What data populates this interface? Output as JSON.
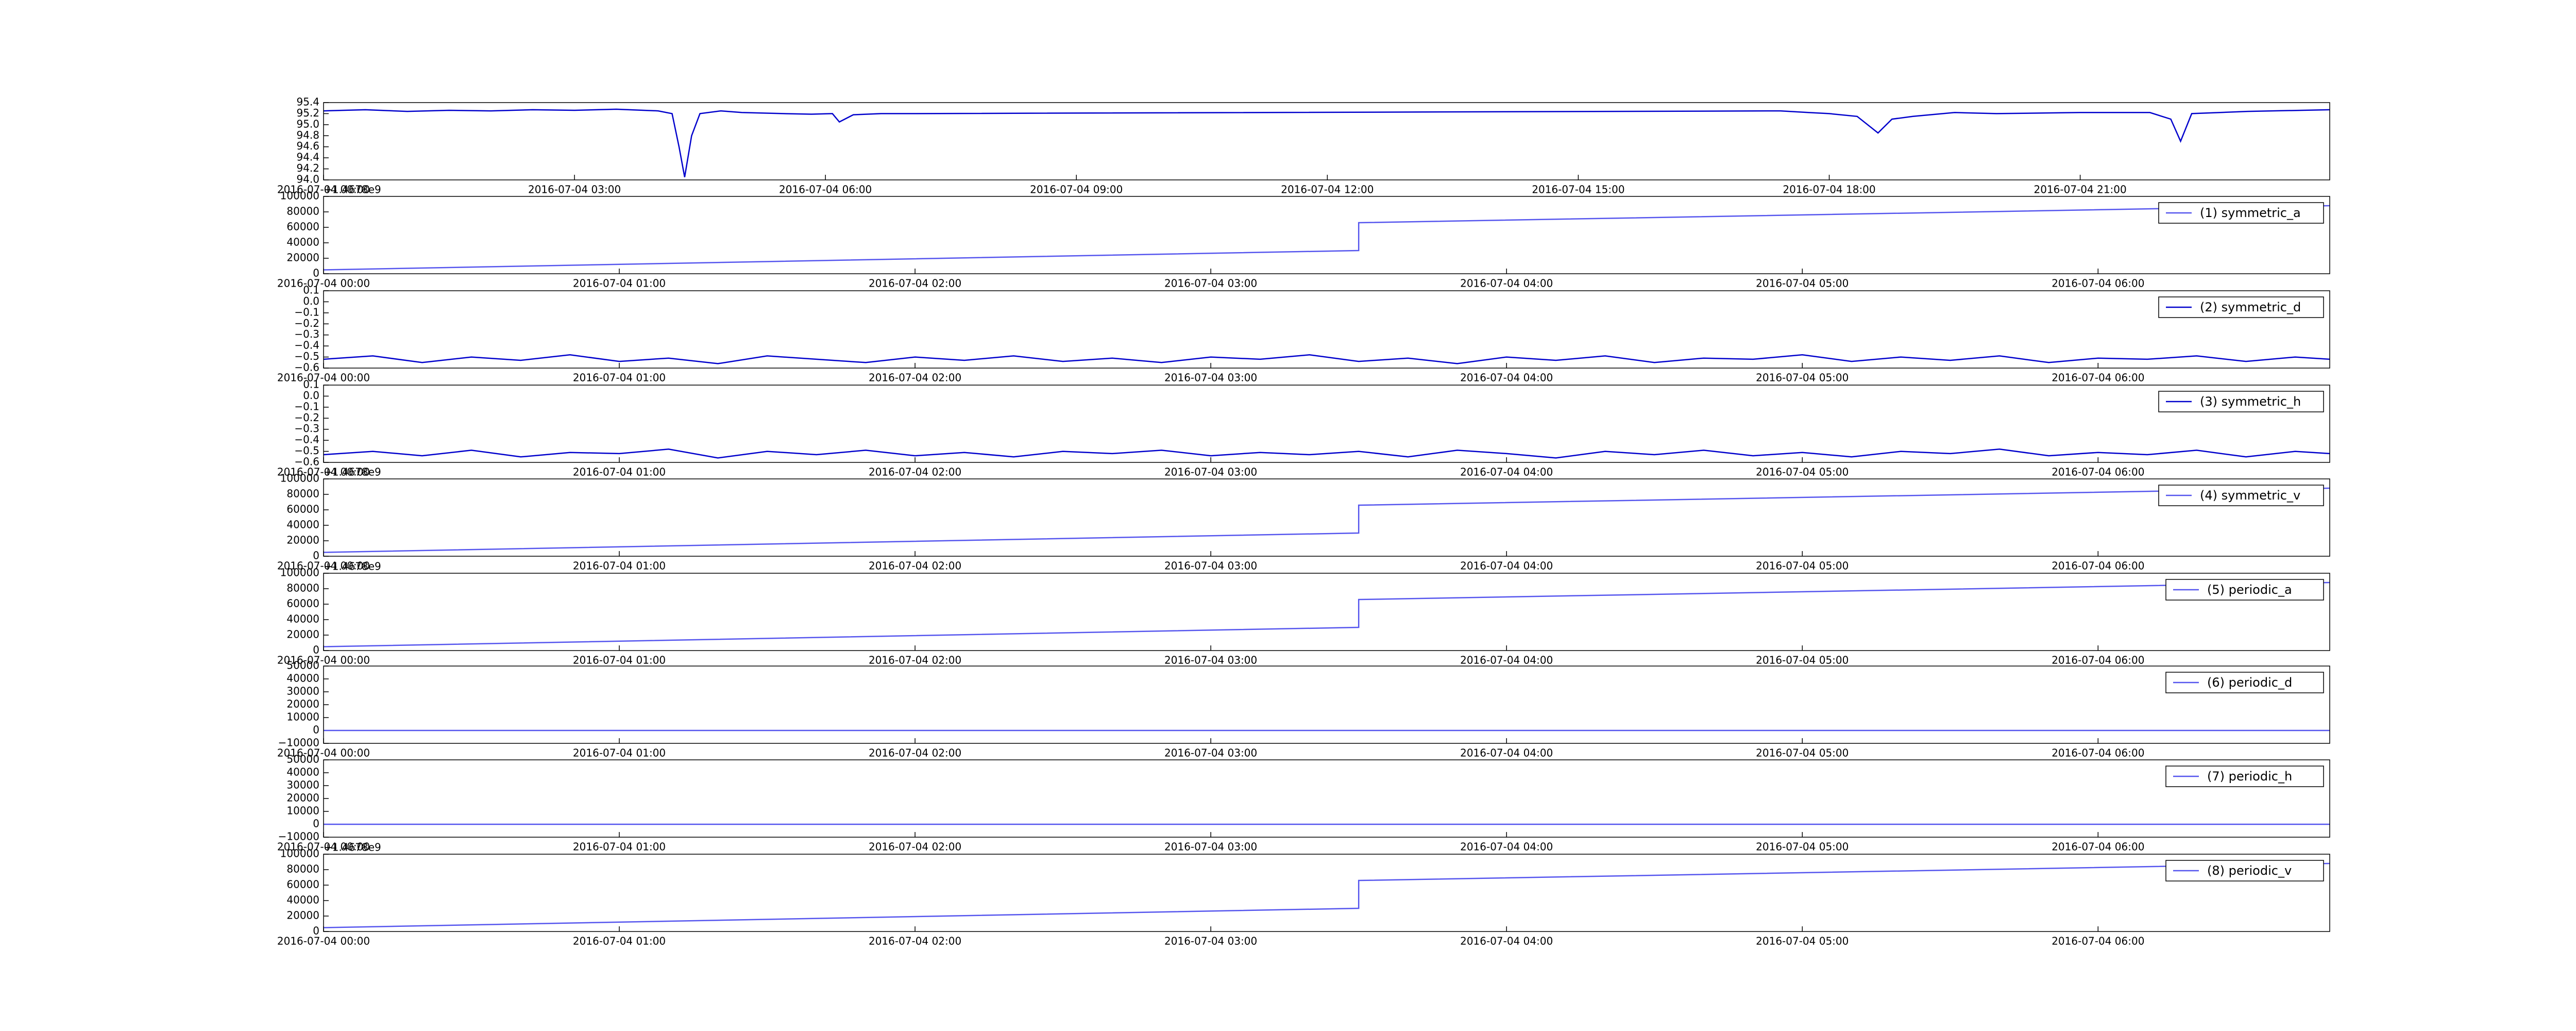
{
  "chart_data": [
    {
      "type": "line",
      "xlim": [
        "2016-07-04 00:00",
        "2016-07-04 23:59"
      ],
      "xticks": [
        "2016-07-04 00:00",
        "2016-07-04 03:00",
        "2016-07-04 06:00",
        "2016-07-04 09:00",
        "2016-07-04 12:00",
        "2016-07-04 15:00",
        "2016-07-04 18:00",
        "2016-07-04 21:00"
      ],
      "ylim": [
        94.0,
        95.4
      ],
      "yticks": [
        {
          "value": 94,
          "label": "94.0"
        },
        94.2,
        94.4,
        94.6,
        94.8,
        {
          "value": 95,
          "label": "95.0"
        },
        95.2,
        95.4
      ],
      "series": [
        {
          "color": "#0000cc",
          "x": [
            "2016-07-04 00:00",
            "2016-07-04 00:30",
            "2016-07-04 01:00",
            "2016-07-04 01:30",
            "2016-07-04 02:00",
            "2016-07-04 02:30",
            "2016-07-04 03:00",
            "2016-07-04 03:30",
            "2016-07-04 04:00",
            "2016-07-04 04:10",
            "2016-07-04 04:15",
            "2016-07-04 04:19",
            "2016-07-04 04:24",
            "2016-07-04 04:30",
            "2016-07-04 04:45",
            "2016-07-04 05:00",
            "2016-07-04 05:30",
            "2016-07-04 05:50",
            "2016-07-04 06:05",
            "2016-07-04 06:10",
            "2016-07-04 06:20",
            "2016-07-04 06:40",
            "2016-07-04 07:00",
            "2016-07-04 17:25",
            "2016-07-04 17:45",
            "2016-07-04 18:00",
            "2016-07-04 18:20",
            "2016-07-04 18:35",
            "2016-07-04 18:45",
            "2016-07-04 19:00",
            "2016-07-04 19:30",
            "2016-07-04 20:00",
            "2016-07-04 21:00",
            "2016-07-04 21:50",
            "2016-07-04 22:05",
            "2016-07-04 22:12",
            "2016-07-04 22:20",
            "2016-07-04 23:00",
            "2016-07-04 23:59"
          ],
          "values": [
            95.25,
            95.27,
            95.24,
            95.26,
            95.25,
            95.27,
            95.26,
            95.28,
            95.25,
            95.2,
            94.6,
            94.05,
            94.8,
            95.2,
            95.25,
            95.22,
            95.2,
            95.19,
            95.2,
            95.05,
            95.18,
            95.2,
            95.2,
            95.25,
            95.22,
            95.2,
            95.15,
            94.85,
            95.1,
            95.15,
            95.22,
            95.2,
            95.22,
            95.22,
            95.1,
            94.7,
            95.2,
            95.24,
            95.27
          ]
        }
      ]
    },
    {
      "type": "line",
      "offset_text": "+1.4678e9",
      "legend": "upper right",
      "xlim": [
        "2016-07-04 00:00",
        "2016-07-04 06:47"
      ],
      "xticks": [
        "2016-07-04 00:00",
        "2016-07-04 01:00",
        "2016-07-04 02:00",
        "2016-07-04 03:00",
        "2016-07-04 04:00",
        "2016-07-04 05:00",
        "2016-07-04 06:00"
      ],
      "ylim": [
        0,
        100000
      ],
      "yticks": [
        0,
        20000,
        40000,
        60000,
        80000,
        100000
      ],
      "series": [
        {
          "name": "(1) symmetric_a",
          "color": "#5555ee",
          "x": [
            "2016-07-04 00:00",
            "2016-07-04 03:30",
            "2016-07-04 03:30",
            "2016-07-04 06:47"
          ],
          "values": [
            5000,
            30000,
            66000,
            88000
          ]
        }
      ]
    },
    {
      "type": "line",
      "legend": "upper right",
      "xlim": [
        "2016-07-04 00:00",
        "2016-07-04 06:47"
      ],
      "xticks": [
        "2016-07-04 00:00",
        "2016-07-04 01:00",
        "2016-07-04 02:00",
        "2016-07-04 03:00",
        "2016-07-04 04:00",
        "2016-07-04 05:00",
        "2016-07-04 06:00"
      ],
      "ylim": [
        -0.6,
        0.1
      ],
      "yticks": [
        {
          "value": -0.6,
          "label": "−0.6"
        },
        {
          "value": -0.5,
          "label": "−0.5"
        },
        {
          "value": -0.4,
          "label": "−0.4"
        },
        {
          "value": -0.3,
          "label": "−0.3"
        },
        {
          "value": -0.2,
          "label": "−0.2"
        },
        {
          "value": -0.1,
          "label": "−0.1"
        },
        {
          "value": 0,
          "label": "0.0"
        },
        0.1
      ],
      "series": [
        {
          "name": "(2) symmetric_d",
          "color": "#0000cc",
          "x": [
            "2016-07-04 00:00",
            "2016-07-04 00:10",
            "2016-07-04 00:20",
            "2016-07-04 00:30",
            "2016-07-04 00:40",
            "2016-07-04 00:50",
            "2016-07-04 01:00",
            "2016-07-04 01:10",
            "2016-07-04 01:20",
            "2016-07-04 01:30",
            "2016-07-04 01:40",
            "2016-07-04 01:50",
            "2016-07-04 02:00",
            "2016-07-04 02:10",
            "2016-07-04 02:20",
            "2016-07-04 02:30",
            "2016-07-04 02:40",
            "2016-07-04 02:50",
            "2016-07-04 03:00",
            "2016-07-04 03:10",
            "2016-07-04 03:20",
            "2016-07-04 03:30",
            "2016-07-04 03:40",
            "2016-07-04 03:50",
            "2016-07-04 04:00",
            "2016-07-04 04:10",
            "2016-07-04 04:20",
            "2016-07-04 04:30",
            "2016-07-04 04:40",
            "2016-07-04 04:50",
            "2016-07-04 05:00",
            "2016-07-04 05:10",
            "2016-07-04 05:20",
            "2016-07-04 05:30",
            "2016-07-04 05:40",
            "2016-07-04 05:50",
            "2016-07-04 06:00",
            "2016-07-04 06:10",
            "2016-07-04 06:20",
            "2016-07-04 06:30",
            "2016-07-04 06:40",
            "2016-07-04 06:47"
          ],
          "values": [
            -0.52,
            -0.49,
            -0.55,
            -0.5,
            -0.53,
            -0.48,
            -0.54,
            -0.51,
            -0.56,
            -0.49,
            -0.52,
            -0.55,
            -0.5,
            -0.53,
            -0.49,
            -0.54,
            -0.51,
            -0.55,
            -0.5,
            -0.52,
            -0.48,
            -0.54,
            -0.51,
            -0.56,
            -0.5,
            -0.53,
            -0.49,
            -0.55,
            -0.51,
            -0.52,
            -0.48,
            -0.54,
            -0.5,
            -0.53,
            -0.49,
            -0.55,
            -0.51,
            -0.52,
            -0.49,
            -0.54,
            -0.5,
            -0.52
          ]
        }
      ]
    },
    {
      "type": "line",
      "legend": "upper right",
      "xlim": [
        "2016-07-04 00:00",
        "2016-07-04 06:47"
      ],
      "xticks": [
        "2016-07-04 00:00",
        "2016-07-04 01:00",
        "2016-07-04 02:00",
        "2016-07-04 03:00",
        "2016-07-04 04:00",
        "2016-07-04 05:00",
        "2016-07-04 06:00"
      ],
      "ylim": [
        -0.6,
        0.1
      ],
      "yticks": [
        {
          "value": -0.6,
          "label": "−0.6"
        },
        {
          "value": -0.5,
          "label": "−0.5"
        },
        {
          "value": -0.4,
          "label": "−0.4"
        },
        {
          "value": -0.3,
          "label": "−0.3"
        },
        {
          "value": -0.2,
          "label": "−0.2"
        },
        {
          "value": -0.1,
          "label": "−0.1"
        },
        {
          "value": 0,
          "label": "0.0"
        },
        0.1
      ],
      "series": [
        {
          "name": "(3) symmetric_h",
          "color": "#0000cc",
          "x": [
            "2016-07-04 00:00",
            "2016-07-04 00:10",
            "2016-07-04 00:20",
            "2016-07-04 00:30",
            "2016-07-04 00:40",
            "2016-07-04 00:50",
            "2016-07-04 01:00",
            "2016-07-04 01:10",
            "2016-07-04 01:20",
            "2016-07-04 01:30",
            "2016-07-04 01:40",
            "2016-07-04 01:50",
            "2016-07-04 02:00",
            "2016-07-04 02:10",
            "2016-07-04 02:20",
            "2016-07-04 02:30",
            "2016-07-04 02:40",
            "2016-07-04 02:50",
            "2016-07-04 03:00",
            "2016-07-04 03:10",
            "2016-07-04 03:20",
            "2016-07-04 03:30",
            "2016-07-04 03:40",
            "2016-07-04 03:50",
            "2016-07-04 04:00",
            "2016-07-04 04:10",
            "2016-07-04 04:20",
            "2016-07-04 04:30",
            "2016-07-04 04:40",
            "2016-07-04 04:50",
            "2016-07-04 05:00",
            "2016-07-04 05:10",
            "2016-07-04 05:20",
            "2016-07-04 05:30",
            "2016-07-04 05:40",
            "2016-07-04 05:50",
            "2016-07-04 06:00",
            "2016-07-04 06:10",
            "2016-07-04 06:20",
            "2016-07-04 06:30",
            "2016-07-04 06:40",
            "2016-07-04 06:47"
          ],
          "values": [
            -0.53,
            -0.5,
            -0.54,
            -0.49,
            -0.55,
            -0.51,
            -0.52,
            -0.48,
            -0.56,
            -0.5,
            -0.53,
            -0.49,
            -0.54,
            -0.51,
            -0.55,
            -0.5,
            -0.52,
            -0.49,
            -0.54,
            -0.51,
            -0.53,
            -0.5,
            -0.55,
            -0.49,
            -0.52,
            -0.56,
            -0.5,
            -0.53,
            -0.49,
            -0.54,
            -0.51,
            -0.55,
            -0.5,
            -0.52,
            -0.48,
            -0.54,
            -0.51,
            -0.53,
            -0.49,
            -0.55,
            -0.5,
            -0.52
          ]
        }
      ]
    },
    {
      "type": "line",
      "offset_text": "+1.4678e9",
      "legend": "upper right",
      "xlim": [
        "2016-07-04 00:00",
        "2016-07-04 06:47"
      ],
      "xticks": [
        "2016-07-04 00:00",
        "2016-07-04 01:00",
        "2016-07-04 02:00",
        "2016-07-04 03:00",
        "2016-07-04 04:00",
        "2016-07-04 05:00",
        "2016-07-04 06:00"
      ],
      "ylim": [
        0,
        100000
      ],
      "yticks": [
        0,
        20000,
        40000,
        60000,
        80000,
        100000
      ],
      "series": [
        {
          "name": "(4) symmetric_v",
          "color": "#5555ee",
          "x": [
            "2016-07-04 00:00",
            "2016-07-04 03:30",
            "2016-07-04 03:30",
            "2016-07-04 06:47"
          ],
          "values": [
            5000,
            30000,
            66000,
            88000
          ]
        }
      ]
    },
    {
      "type": "line",
      "offset_text": "+1.4678e9",
      "legend": "upper right",
      "xlim": [
        "2016-07-04 00:00",
        "2016-07-04 06:47"
      ],
      "xticks": [
        "2016-07-04 00:00",
        "2016-07-04 01:00",
        "2016-07-04 02:00",
        "2016-07-04 03:00",
        "2016-07-04 04:00",
        "2016-07-04 05:00",
        "2016-07-04 06:00"
      ],
      "ylim": [
        0,
        100000
      ],
      "yticks": [
        0,
        20000,
        40000,
        60000,
        80000,
        100000
      ],
      "series": [
        {
          "name": "(5) periodic_a",
          "color": "#5555ee",
          "x": [
            "2016-07-04 00:00",
            "2016-07-04 03:30",
            "2016-07-04 03:30",
            "2016-07-04 06:47"
          ],
          "values": [
            5000,
            30000,
            66000,
            88000
          ]
        }
      ]
    },
    {
      "type": "line",
      "legend": "upper right",
      "xlim": [
        "2016-07-04 00:00",
        "2016-07-04 06:47"
      ],
      "xticks": [
        "2016-07-04 00:00",
        "2016-07-04 01:00",
        "2016-07-04 02:00",
        "2016-07-04 03:00",
        "2016-07-04 04:00",
        "2016-07-04 05:00",
        "2016-07-04 06:00"
      ],
      "ylim": [
        -10000,
        50000
      ],
      "yticks": [
        {
          "value": -10000,
          "label": "−10000"
        },
        0,
        10000,
        20000,
        30000,
        40000,
        50000
      ],
      "series": [
        {
          "name": "(6) periodic_d",
          "color": "#5555ee",
          "x": [
            "2016-07-04 00:00",
            "2016-07-04 06:47"
          ],
          "values": [
            0,
            0
          ]
        }
      ]
    },
    {
      "type": "line",
      "legend": "upper right",
      "xlim": [
        "2016-07-04 00:00",
        "2016-07-04 06:47"
      ],
      "xticks": [
        "2016-07-04 00:00",
        "2016-07-04 01:00",
        "2016-07-04 02:00",
        "2016-07-04 03:00",
        "2016-07-04 04:00",
        "2016-07-04 05:00",
        "2016-07-04 06:00"
      ],
      "ylim": [
        -10000,
        50000
      ],
      "yticks": [
        {
          "value": -10000,
          "label": "−10000"
        },
        0,
        10000,
        20000,
        30000,
        40000,
        50000
      ],
      "series": [
        {
          "name": "(7) periodic_h",
          "color": "#5555ee",
          "x": [
            "2016-07-04 00:00",
            "2016-07-04 06:47"
          ],
          "values": [
            0,
            0
          ]
        }
      ]
    },
    {
      "type": "line",
      "offset_text": "+1.4678e9",
      "legend": "upper right",
      "xlim": [
        "2016-07-04 00:00",
        "2016-07-04 06:47"
      ],
      "xticks": [
        "2016-07-04 00:00",
        "2016-07-04 01:00",
        "2016-07-04 02:00",
        "2016-07-04 03:00",
        "2016-07-04 04:00",
        "2016-07-04 05:00",
        "2016-07-04 06:00"
      ],
      "ylim": [
        0,
        100000
      ],
      "yticks": [
        0,
        20000,
        40000,
        60000,
        80000,
        100000
      ],
      "series": [
        {
          "name": "(8) periodic_v",
          "color": "#5555ee",
          "x": [
            "2016-07-04 00:00",
            "2016-07-04 03:30",
            "2016-07-04 03:30",
            "2016-07-04 06:47"
          ],
          "values": [
            5000,
            30000,
            66000,
            88000
          ]
        }
      ]
    }
  ]
}
